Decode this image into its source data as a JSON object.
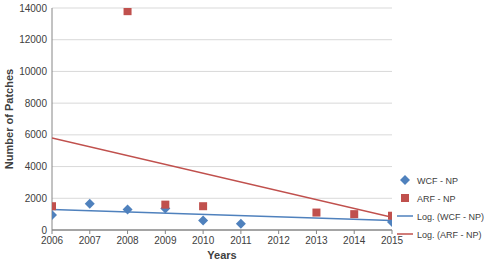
{
  "chart_data": {
    "type": "scatter",
    "x_label": "Years",
    "y_label": "Number of Patches",
    "x": [
      2006,
      2007,
      2008,
      2009,
      2010,
      2011,
      2012,
      2013,
      2014,
      2015
    ],
    "series": [
      {
        "name": "WCF - NP",
        "color": "#4f81bd",
        "marker": "diamond",
        "values": [
          950,
          1650,
          1300,
          1350,
          600,
          400,
          null,
          null,
          null,
          500
        ]
      },
      {
        "name": "ARF - NP",
        "color": "#c0504d",
        "marker": "square",
        "values": [
          1500,
          null,
          13800,
          1600,
          1500,
          null,
          null,
          1100,
          1000,
          900
        ]
      },
      {
        "name": "Log. (WCF - NP)",
        "color": "#4f81bd",
        "type": "line",
        "line_style": "solid",
        "x": [
          2006,
          2015
        ],
        "values": [
          1300,
          600
        ]
      },
      {
        "name": "Log. (ARF - NP)",
        "color": "#c0504d",
        "type": "line",
        "line_style": "solid",
        "x": [
          2006,
          2015
        ],
        "values": [
          5800,
          800
        ]
      }
    ],
    "xlim": [
      2006,
      2015
    ],
    "xticks": [
      2006,
      2007,
      2008,
      2009,
      2010,
      2011,
      2012,
      2013,
      2014,
      2015
    ],
    "ylim": [
      0,
      14000
    ],
    "yticks": [
      0,
      2000,
      4000,
      6000,
      8000,
      10000,
      12000,
      14000
    ],
    "grid": true,
    "legend": "right"
  }
}
